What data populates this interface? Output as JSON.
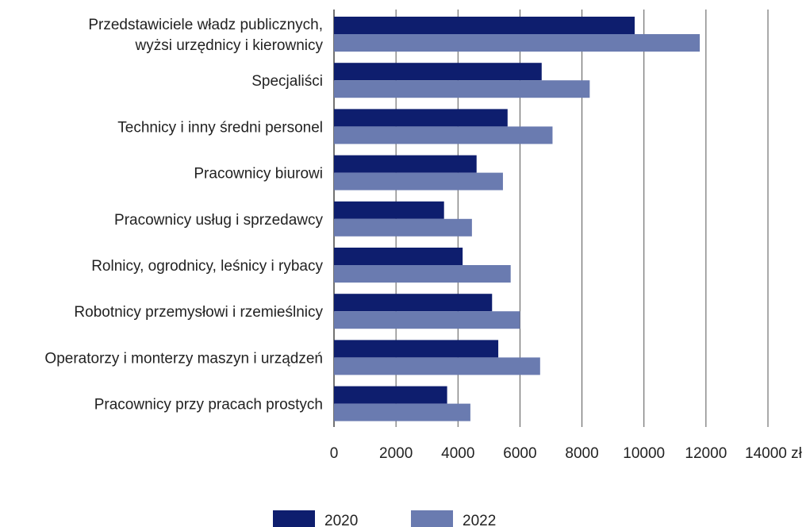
{
  "chart_data": {
    "type": "bar",
    "orientation": "horizontal",
    "categories": [
      [
        "Przedstawiciele władz publicznych,",
        "wyżsi urzędnicy i kierownicy"
      ],
      [
        "Specjaliści"
      ],
      [
        "Technicy i inny średni personel"
      ],
      [
        "Pracownicy biurowi"
      ],
      [
        "Pracownicy usług i sprzedawcy"
      ],
      [
        "Rolnicy, ogrodnicy, leśnicy i rybacy"
      ],
      [
        "Robotnicy przemysłowi i rzemieślnicy"
      ],
      [
        "Operatorzy i monterzy maszyn i urządzeń"
      ],
      [
        "Pracownicy przy pracach prostych"
      ]
    ],
    "series": [
      {
        "name": "2020",
        "color": "#0e1e6e",
        "values": [
          9700,
          6700,
          5600,
          4600,
          3550,
          4150,
          5100,
          5300,
          3650
        ]
      },
      {
        "name": "2022",
        "color": "#6a7bb0",
        "values": [
          11800,
          8250,
          7050,
          5450,
          4450,
          5700,
          6000,
          6650,
          4400
        ]
      }
    ],
    "x_ticks": [
      "0",
      "2000",
      "4000",
      "6000",
      "8000",
      "10000",
      "12000",
      "14000 zł"
    ],
    "xlim": [
      0,
      14000
    ],
    "grid": true,
    "legend_position": "bottom"
  }
}
